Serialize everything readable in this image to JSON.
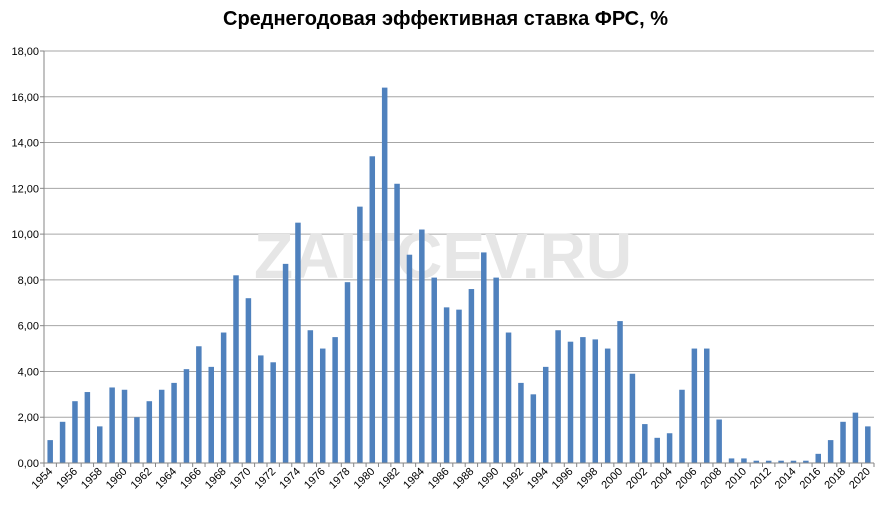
{
  "chart_data": {
    "type": "bar",
    "title": "Среднегодовая эффективная ставка ФРС, %",
    "watermark": "ZAITCEV.RU",
    "xlabel": "",
    "ylabel": "",
    "ylim": [
      0,
      18
    ],
    "yticks": [
      "0,00",
      "2,00",
      "4,00",
      "6,00",
      "8,00",
      "10,00",
      "12,00",
      "14,00",
      "16,00",
      "18,00"
    ],
    "grid": true,
    "bar_color": "#4f81bd",
    "categories": [
      "1954",
      "1955",
      "1956",
      "1957",
      "1958",
      "1959",
      "1960",
      "1961",
      "1962",
      "1963",
      "1964",
      "1965",
      "1966",
      "1967",
      "1968",
      "1969",
      "1970",
      "1971",
      "1972",
      "1973",
      "1974",
      "1975",
      "1976",
      "1977",
      "1978",
      "1979",
      "1980",
      "1981",
      "1982",
      "1983",
      "1984",
      "1985",
      "1986",
      "1987",
      "1988",
      "1989",
      "1990",
      "1991",
      "1992",
      "1993",
      "1994",
      "1995",
      "1996",
      "1997",
      "1998",
      "1999",
      "2000",
      "2001",
      "2002",
      "2003",
      "2004",
      "2005",
      "2006",
      "2007",
      "2008",
      "2009",
      "2010",
      "2011",
      "2012",
      "2013",
      "2014",
      "2015",
      "2016",
      "2017",
      "2018",
      "2019",
      "2020"
    ],
    "xtick_labels": [
      "1954",
      "1956",
      "1958",
      "1960",
      "1962",
      "1964",
      "1966",
      "1968",
      "1970",
      "1972",
      "1974",
      "1976",
      "1978",
      "1980",
      "1982",
      "1984",
      "1986",
      "1988",
      "1990",
      "1992",
      "1994",
      "1996",
      "1998",
      "2000",
      "2002",
      "2004",
      "2006",
      "2008",
      "2010",
      "2012",
      "2014",
      "2016",
      "2018",
      "2020"
    ],
    "values": [
      1.0,
      1.8,
      2.7,
      3.1,
      1.6,
      3.3,
      3.2,
      2.0,
      2.7,
      3.2,
      3.5,
      4.1,
      5.1,
      4.2,
      5.7,
      8.2,
      7.2,
      4.7,
      4.4,
      8.7,
      10.5,
      5.8,
      5.0,
      5.5,
      7.9,
      11.2,
      13.4,
      16.4,
      12.2,
      9.1,
      10.2,
      8.1,
      6.8,
      6.7,
      7.6,
      9.2,
      8.1,
      5.7,
      3.5,
      3.0,
      4.2,
      5.8,
      5.3,
      5.5,
      5.4,
      5.0,
      6.2,
      3.9,
      1.7,
      1.1,
      1.3,
      3.2,
      5.0,
      5.0,
      1.9,
      0.2,
      0.2,
      0.1,
      0.1,
      0.1,
      0.1,
      0.1,
      0.4,
      1.0,
      1.8,
      2.2,
      1.6
    ]
  }
}
